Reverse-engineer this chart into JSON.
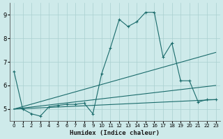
{
  "xlabel": "Humidex (Indice chaleur)",
  "bg_color": "#ceeaea",
  "grid_color": "#aacfcf",
  "line_color": "#1a6b6b",
  "xlim": [
    -0.5,
    23.5
  ],
  "ylim": [
    4.5,
    9.5
  ],
  "yticks": [
    5,
    6,
    7,
    8,
    9
  ],
  "xticks": [
    0,
    1,
    2,
    3,
    4,
    5,
    6,
    7,
    8,
    9,
    10,
    11,
    12,
    13,
    14,
    15,
    16,
    17,
    18,
    19,
    20,
    21,
    22,
    23
  ],
  "series": [
    [
      0,
      6.6
    ],
    [
      1,
      5.0
    ],
    [
      2,
      4.8
    ],
    [
      3,
      4.7
    ],
    [
      4,
      5.1
    ],
    [
      5,
      5.15
    ],
    [
      6,
      5.2
    ],
    [
      7,
      5.2
    ],
    [
      8,
      5.25
    ],
    [
      9,
      4.8
    ],
    [
      10,
      6.5
    ],
    [
      11,
      7.6
    ],
    [
      12,
      8.8
    ],
    [
      13,
      8.5
    ],
    [
      14,
      8.7
    ],
    [
      15,
      9.1
    ],
    [
      16,
      9.1
    ],
    [
      17,
      7.2
    ],
    [
      18,
      7.8
    ],
    [
      19,
      6.2
    ],
    [
      20,
      6.2
    ],
    [
      21,
      5.3
    ],
    [
      22,
      5.4
    ],
    [
      23,
      5.4
    ]
  ],
  "line2": [
    [
      0,
      5.0
    ],
    [
      23,
      7.4
    ]
  ],
  "line3": [
    [
      0,
      5.0
    ],
    [
      23,
      6.0
    ]
  ],
  "line4": [
    [
      0,
      5.0
    ],
    [
      23,
      5.4
    ]
  ]
}
